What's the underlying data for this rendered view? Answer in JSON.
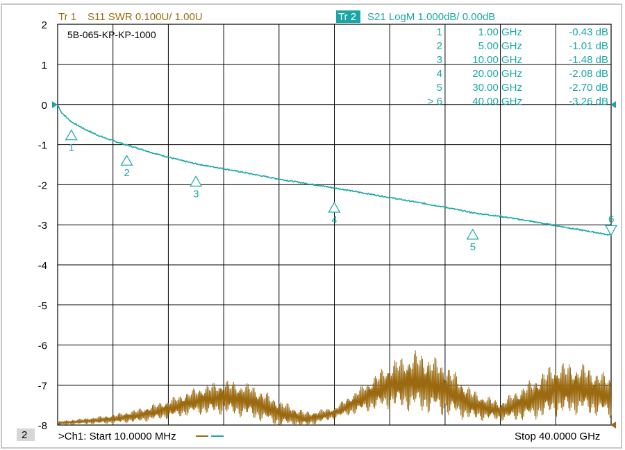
{
  "header": {
    "tr1_label": "Tr 1",
    "tr1_desc": "S11 SWR 0.100U/  1.00U",
    "tr2_label": "Tr 2",
    "tr2_desc": "S21 LogM 1.000dB/  0.00dB"
  },
  "device_label": "5B-065-KP-KP-1000",
  "footer": {
    "channel_number": "2",
    "start_text": ">Ch1:  Start  10.0000 MHz",
    "stop_text": "Stop  40.0000 GHz"
  },
  "colors": {
    "tr1": "#9b6a10",
    "tr2": "#1aa6a6",
    "grid": "#000000",
    "background": "#ffffff"
  },
  "marker_table": [
    {
      "id": "1",
      "freq": "1.00 GHz",
      "value": "-0.43 dB",
      "active": false
    },
    {
      "id": "2",
      "freq": "5.00 GHz",
      "value": "-1.01 dB",
      "active": false
    },
    {
      "id": "3",
      "freq": "10.00 GHz",
      "value": "-1.48 dB",
      "active": false
    },
    {
      "id": "4",
      "freq": "20.00 GHz",
      "value": "-2.08 dB",
      "active": false
    },
    {
      "id": "5",
      "freq": "30.00 GHz",
      "value": "-2.70 dB",
      "active": false
    },
    {
      "id": "6",
      "freq": "40.00 GHz",
      "value": "-3.26 dB",
      "active": true
    }
  ],
  "chart_data": {
    "type": "line",
    "title": "",
    "xlabel": "",
    "ylabel": "",
    "xlim": [
      0.01,
      40
    ],
    "ylim": [
      -8,
      2
    ],
    "yticks": [
      "2",
      "1",
      "0",
      "-1",
      "-2",
      "-3",
      "-4",
      "-5",
      "-6",
      "-7",
      "-8"
    ],
    "x_divisions": 10,
    "grid": true,
    "series": [
      {
        "trace": "S21 LogM",
        "color": "#1aa6a6",
        "x": [
          0.01,
          0.25,
          0.5,
          1,
          2,
          3,
          4,
          5,
          6,
          7,
          8,
          9,
          10,
          12,
          14,
          16,
          18,
          20,
          22,
          24,
          26,
          28,
          30,
          32,
          34,
          36,
          38,
          40
        ],
        "y": [
          0,
          -0.18,
          -0.27,
          -0.43,
          -0.62,
          -0.78,
          -0.9,
          -1.01,
          -1.11,
          -1.22,
          -1.31,
          -1.4,
          -1.48,
          -1.6,
          -1.73,
          -1.86,
          -1.97,
          -2.08,
          -2.2,
          -2.32,
          -2.44,
          -2.56,
          -2.7,
          -2.79,
          -2.9,
          -3.02,
          -3.14,
          -3.26
        ],
        "markers": [
          {
            "id": "1",
            "x": 1,
            "y": -0.43
          },
          {
            "id": "2",
            "x": 5,
            "y": -1.01
          },
          {
            "id": "3",
            "x": 10,
            "y": -1.48
          },
          {
            "id": "4",
            "x": 20,
            "y": -2.08
          },
          {
            "id": "5",
            "x": 30,
            "y": -2.7
          },
          {
            "id": "6",
            "x": 40,
            "y": -3.26
          }
        ]
      },
      {
        "trace": "S11 SWR",
        "color": "#9b6a10",
        "center_x": [
          0.01,
          2,
          4,
          6,
          8,
          10,
          12,
          14,
          16,
          18,
          20,
          22,
          24,
          26,
          28,
          30,
          32,
          34,
          36,
          38,
          40
        ],
        "center_y": [
          -7.95,
          -7.9,
          -7.85,
          -7.75,
          -7.6,
          -7.4,
          -7.3,
          -7.4,
          -7.7,
          -7.85,
          -7.7,
          -7.35,
          -7.0,
          -6.9,
          -7.1,
          -7.5,
          -7.65,
          -7.4,
          -7.1,
          -7.1,
          -7.3
        ],
        "amplitude": [
          0.05,
          0.08,
          0.12,
          0.18,
          0.25,
          0.35,
          0.45,
          0.45,
          0.35,
          0.2,
          0.15,
          0.35,
          0.6,
          0.8,
          0.7,
          0.4,
          0.25,
          0.5,
          0.7,
          0.65,
          0.55
        ]
      }
    ]
  }
}
